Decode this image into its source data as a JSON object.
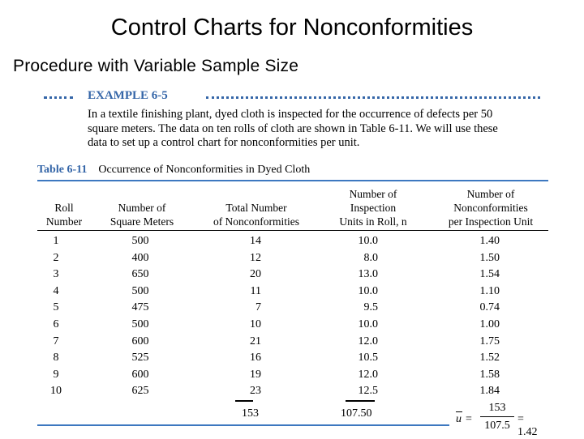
{
  "slide": {
    "title": "Control Charts for Nonconformities",
    "subtitle": "Procedure with Variable Sample Size"
  },
  "example": {
    "label": "EXAMPLE 6-5",
    "lines": [
      "In a textile finishing plant, dyed cloth is inspected for the occurrence of defects per 50",
      "square meters. The data on ten rolls of cloth are shown in Table 6-11. We will use these",
      "data to set up a control chart for nonconformities per unit."
    ]
  },
  "table": {
    "number": "Table 6-11",
    "caption": "Occurrence of Nonconformities in Dyed Cloth",
    "headers": [
      "Roll\nNumber",
      "Number of\nSquare Meters",
      "Total Number\nof Nonconformities",
      "Number of\nInspection\nUnits in Roll, n",
      "Number of\nNonconformities\nper Inspection Unit"
    ],
    "rows": [
      [
        "1",
        "500",
        "14",
        "10.0",
        "1.40"
      ],
      [
        "2",
        "400",
        "12",
        "8.0",
        "1.50"
      ],
      [
        "3",
        "650",
        "20",
        "13.0",
        "1.54"
      ],
      [
        "4",
        "500",
        "11",
        "10.0",
        "1.10"
      ],
      [
        "5",
        "475",
        "7",
        "9.5",
        "0.74"
      ],
      [
        "6",
        "500",
        "10",
        "10.0",
        "1.00"
      ],
      [
        "7",
        "600",
        "21",
        "12.0",
        "1.75"
      ],
      [
        "8",
        "525",
        "16",
        "10.5",
        "1.52"
      ],
      [
        "9",
        "600",
        "19",
        "12.0",
        "1.58"
      ],
      [
        "10",
        "625",
        "23",
        "12.5",
        "1.84"
      ]
    ],
    "totals": {
      "nonconformities": "153",
      "inspection_units": "107.50"
    }
  },
  "formula": {
    "symbol": "u",
    "equals": "=",
    "numerator": "153",
    "denominator": "107.5",
    "result": "= 1.42"
  }
}
